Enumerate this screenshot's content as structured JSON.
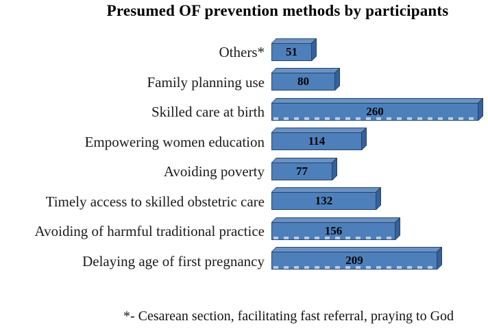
{
  "title": "Presumed OF prevention methods by participants",
  "footnote": "*- Cesarean section, facilitating fast referral, praying to God",
  "chart_data": {
    "type": "bar",
    "orientation": "horizontal",
    "title": "Presumed OF prevention methods by participants",
    "categories": [
      "Others*",
      "Family planning use",
      "Skilled care at birth",
      "Empowering women education",
      "Avoiding poverty",
      "Timely access to skilled obstetric care",
      "Avoiding of harmful traditional practice",
      "Delaying age of first pregnancy"
    ],
    "values": [
      51,
      80,
      260,
      114,
      77,
      132,
      156,
      209
    ],
    "value_labels_shown": true,
    "xlabel": "",
    "ylabel": "",
    "xlim": [
      0,
      270
    ],
    "gridlines": false,
    "legend": false,
    "style": "3d-extruded-bars",
    "colors": {
      "bar_front": "#4d80bb",
      "bar_top": "#6991c4",
      "bar_side": "#35619c",
      "bar_outline": "#24436b",
      "value_label": "#000000",
      "dash_marks": "#b9cde6",
      "background": "#ffffff"
    },
    "footnote": "*- Cesarean section, facilitating fast referral, praying to God"
  }
}
